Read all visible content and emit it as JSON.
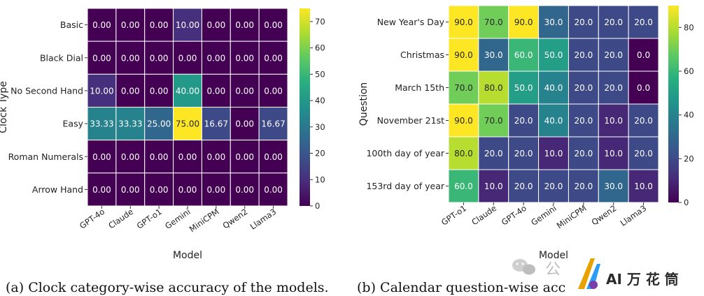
{
  "chart_data": [
    {
      "type": "heatmap",
      "xlabel": "Model",
      "ylabel": "Clock Type",
      "x": [
        "GPT-4o",
        "Claude",
        "GPT-o1",
        "Gemini",
        "MiniCPM",
        "Qwen2",
        "Llama3"
      ],
      "y": [
        "Basic",
        "Black Dial",
        "No Second Hand",
        "Easy",
        "Roman Numerals",
        "Arrow Hand"
      ],
      "values": [
        [
          0.0,
          0.0,
          0.0,
          10.0,
          0.0,
          0.0,
          0.0
        ],
        [
          0.0,
          0.0,
          0.0,
          0.0,
          0.0,
          0.0,
          0.0
        ],
        [
          10.0,
          0.0,
          0.0,
          40.0,
          0.0,
          0.0,
          0.0
        ],
        [
          33.33,
          33.33,
          25.0,
          75.0,
          16.67,
          0.0,
          16.67
        ],
        [
          0.0,
          0.0,
          0.0,
          0.0,
          0.0,
          0.0,
          0.0
        ],
        [
          0.0,
          0.0,
          0.0,
          0.0,
          0.0,
          0.0,
          0.0
        ]
      ],
      "value_decimals": 2,
      "colormap": "viridis",
      "colorbar": {
        "min": 0,
        "max": 75,
        "ticks": [
          0,
          10,
          20,
          30,
          40,
          50,
          60,
          70
        ]
      },
      "caption": "(a) Clock category-wise accuracy of the models."
    },
    {
      "type": "heatmap",
      "xlabel": "Model",
      "ylabel": "Question",
      "x": [
        "GPT-o1",
        "Claude",
        "GPT-4o",
        "Gemini",
        "MiniCPM",
        "Qwen2",
        "Llama3"
      ],
      "y": [
        "New Year's Day",
        "Christmas",
        "March 15th",
        "November 21st",
        "100th day of year",
        "153rd day of year"
      ],
      "values": [
        [
          90.0,
          70.0,
          90.0,
          30.0,
          20.0,
          20.0,
          20.0
        ],
        [
          90.0,
          30.0,
          60.0,
          50.0,
          20.0,
          20.0,
          0.0
        ],
        [
          70.0,
          80.0,
          50.0,
          40.0,
          20.0,
          20.0,
          0.0
        ],
        [
          90.0,
          70.0,
          20.0,
          40.0,
          20.0,
          10.0,
          20.0
        ],
        [
          80.0,
          20.0,
          20.0,
          10.0,
          20.0,
          10.0,
          20.0
        ],
        [
          60.0,
          10.0,
          20.0,
          20.0,
          20.0,
          30.0,
          10.0
        ]
      ],
      "value_decimals": 1,
      "colormap": "viridis",
      "colorbar": {
        "min": 0,
        "max": 90,
        "ticks": [
          0,
          20,
          40,
          60,
          80
        ]
      },
      "caption": "(b) Calendar question-wise acc"
    }
  ],
  "watermark": {
    "left_glyph": "公",
    "brand": "AI 万 花 筒"
  }
}
